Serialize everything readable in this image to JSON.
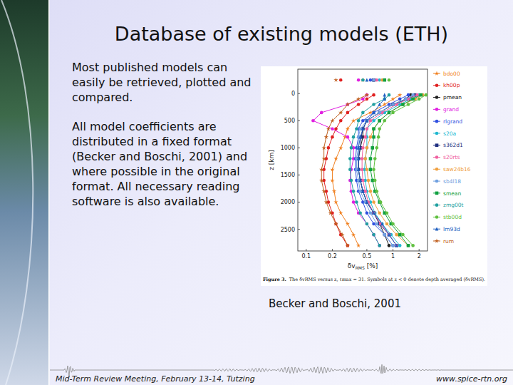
{
  "slide": {
    "title": "Database of existing models (ETH)",
    "paragraphs": [
      "Most published models can easily be retrieved, plotted and compared.",
      "All model coefficients are distributed in a fixed format (Becker and Boschi, 2001) and where possible in the original format. All necessary reading software is also available."
    ],
    "credit": "Becker and Boschi, 2001",
    "footer_left": "Mid-Term Review Meeting, February 13-14, Tutzing",
    "footer_right": "www.spice-rtn.org"
  },
  "chart_data": {
    "type": "line",
    "xlabel": "δv",
    "xlabel_sub": "RMS",
    "xlabel_unit": " [%]",
    "ylabel": "z [km]",
    "caption_bold": "Figure 3.",
    "caption": "The δvRMS versus z, ℓmax = 31. Symbols at z < 0 denote depth averaged (δvRMS).",
    "log": "x",
    "xlim": [
      0.08,
      2.5
    ],
    "xticks": [
      0.1,
      0.2,
      0.5,
      1,
      2
    ],
    "ylim": [
      2900,
      -450
    ],
    "yticks": [
      0,
      500,
      1000,
      1500,
      2000,
      2500
    ],
    "legend": "right",
    "grid": false,
    "average_depth": -250,
    "y": [
      25,
      100,
      200,
      350,
      500,
      650,
      800,
      1000,
      1200,
      1400,
      1600,
      1800,
      2000,
      2200,
      2400,
      2600,
      2800
    ],
    "series": [
      {
        "name": "bdo00",
        "color": "#f08020",
        "marker": "star",
        "average": 0.45,
        "values": [
          1.2,
          1.0,
          0.8,
          0.55,
          0.35,
          0.3,
          0.28,
          0.25,
          0.22,
          0.2,
          0.2,
          0.21,
          0.22,
          0.25,
          0.3,
          0.35,
          0.4
        ]
      },
      {
        "name": "kh00p",
        "color": "#e02020",
        "marker": "circle",
        "average": 0.25,
        "values": [
          0.6,
          0.5,
          0.4,
          0.3,
          0.25,
          0.22,
          0.2,
          0.18,
          0.17,
          0.16,
          0.16,
          0.17,
          0.18,
          0.2,
          0.22,
          0.25,
          0.3
        ]
      },
      {
        "name": "pmean",
        "color": "#202020",
        "marker": "circle",
        "average": 0.6,
        "values": [
          1.6,
          1.4,
          1.0,
          0.7,
          0.5,
          0.45,
          0.45,
          0.42,
          0.4,
          0.4,
          0.42,
          0.45,
          0.5,
          0.6,
          0.7,
          0.8,
          0.9
        ]
      },
      {
        "name": "grand",
        "color": "#e020e0",
        "marker": "circle",
        "average": 0.4,
        "values": [
          0.5,
          0.45,
          0.3,
          0.15,
          0.12,
          0.2,
          0.3,
          0.35,
          0.35,
          0.33,
          0.32,
          0.33,
          0.35,
          0.4,
          0.5,
          0.6,
          0.7
        ]
      },
      {
        "name": "rlgrand",
        "color": "#3050e0",
        "marker": "circle",
        "average": 0.55,
        "values": [
          1.5,
          1.2,
          0.9,
          0.6,
          0.45,
          0.4,
          0.4,
          0.38,
          0.37,
          0.37,
          0.38,
          0.4,
          0.45,
          0.5,
          0.6,
          0.8,
          1.0
        ]
      },
      {
        "name": "s20a",
        "color": "#20b8d0",
        "marker": "circle",
        "average": 0.7,
        "values": [
          2.0,
          1.6,
          1.2,
          0.8,
          0.6,
          0.5,
          0.5,
          0.5,
          0.48,
          0.47,
          0.48,
          0.5,
          0.55,
          0.62,
          0.75,
          0.95,
          1.2
        ]
      },
      {
        "name": "s362d1",
        "color": "#203080",
        "marker": "square",
        "average": 0.6,
        "values": [
          1.8,
          1.5,
          1.0,
          0.7,
          0.5,
          0.45,
          0.43,
          0.42,
          0.4,
          0.4,
          0.42,
          0.45,
          0.5,
          0.6,
          0.7,
          0.9,
          1.1
        ]
      },
      {
        "name": "s20rts",
        "color": "#f060a0",
        "marker": "circle",
        "average": 0.65,
        "values": [
          1.9,
          1.5,
          1.1,
          0.75,
          0.55,
          0.5,
          0.48,
          0.45,
          0.44,
          0.44,
          0.45,
          0.48,
          0.52,
          0.6,
          0.72,
          0.9,
          1.1
        ]
      },
      {
        "name": "saw24b16",
        "color": "#f0a040",
        "marker": "circle",
        "average": 0.75,
        "values": [
          2.2,
          1.8,
          1.3,
          0.9,
          0.7,
          0.6,
          0.55,
          0.5,
          0.48,
          0.5,
          0.52,
          0.55,
          0.6,
          0.7,
          0.85,
          1.1,
          1.5
        ]
      },
      {
        "name": "sb4l18",
        "color": "#70a0e0",
        "marker": "circle",
        "average": 0.6,
        "values": [
          1.7,
          1.4,
          1.0,
          0.7,
          0.5,
          0.42,
          0.4,
          0.4,
          0.38,
          0.38,
          0.4,
          0.42,
          0.48,
          0.55,
          0.65,
          0.8,
          1.0
        ]
      },
      {
        "name": "smean",
        "color": "#10a040",
        "marker": "square",
        "average": 0.8,
        "values": [
          2.1,
          1.7,
          1.3,
          0.9,
          0.7,
          0.6,
          0.6,
          0.58,
          0.55,
          0.55,
          0.58,
          0.62,
          0.7,
          0.8,
          0.95,
          1.2,
          1.5
        ]
      },
      {
        "name": "zmg00t",
        "color": "#20a0a0",
        "marker": "circle",
        "average": 0.45,
        "values": [
          0.9,
          0.8,
          0.6,
          0.45,
          0.4,
          0.38,
          0.35,
          0.33,
          0.32,
          0.32,
          0.33,
          0.35,
          0.38,
          0.42,
          0.5,
          0.6,
          0.7
        ]
      },
      {
        "name": "stb00d",
        "color": "#60c040",
        "marker": "circle",
        "average": 0.9,
        "values": [
          2.4,
          2.0,
          1.5,
          1.0,
          0.8,
          0.7,
          0.68,
          0.65,
          0.62,
          0.6,
          0.62,
          0.65,
          0.72,
          0.85,
          1.0,
          1.3,
          1.7
        ]
      },
      {
        "name": "lm93d",
        "color": "#2060c0",
        "marker": "triangle",
        "average": 0.5,
        "values": [
          0.8,
          0.8,
          0.7,
          0.6,
          0.5,
          0.45,
          0.42,
          0.4,
          0.4,
          0.4,
          0.42,
          0.45,
          0.5,
          0.6,
          0.75,
          0.9,
          1.1
        ]
      },
      {
        "name": "rum",
        "color": "#c06020",
        "marker": "star",
        "average": 0.22,
        "values": [
          0.5,
          0.4,
          0.3,
          0.25,
          0.2,
          0.18,
          0.17,
          0.16,
          0.16,
          0.15,
          0.15,
          0.16,
          0.17,
          0.19,
          0.22,
          0.26,
          0.3
        ]
      }
    ]
  }
}
